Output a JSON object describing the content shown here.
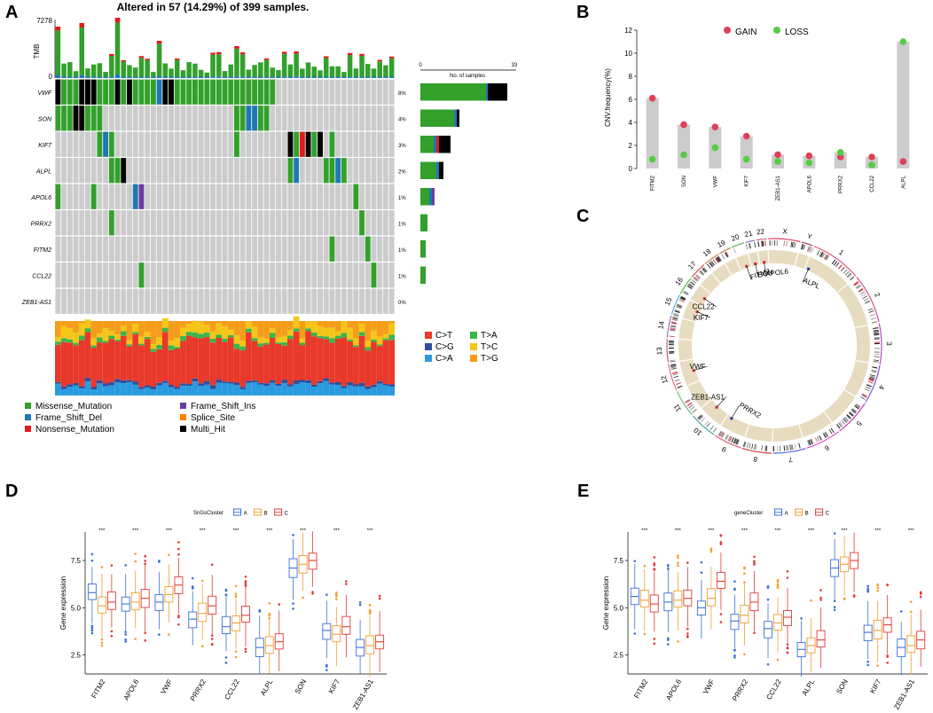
{
  "panels": {
    "a": "A",
    "b": "B",
    "c": "C",
    "d": "D",
    "e": "E"
  },
  "panelA": {
    "title": "Altered in 57 (14.29%) of 399 samples.",
    "tmb_label": "TMB",
    "tmb_max": "7278",
    "tmb_min": "0",
    "bar_axis_min": "0",
    "bar_axis_max": "33",
    "bar_axis_label": "No. of samples",
    "genes": [
      "VWF",
      "SON",
      "KIF7",
      "ALPL",
      "APOL6",
      "PRRX2",
      "FITM2",
      "CCL22",
      "ZEB1-AS1"
    ],
    "percents": [
      "8%",
      "4%",
      "3%",
      "2%",
      "1%",
      "1%",
      "1%",
      "1%",
      "0%"
    ],
    "legend_mutation": [
      {
        "label": "Missense_Mutation",
        "color": "#33a02c"
      },
      {
        "label": "Frame_Shift_Ins",
        "color": "#6a3d9a"
      },
      {
        "label": "Frame_Shift_Del",
        "color": "#1f78b4"
      },
      {
        "label": "Splice_Site",
        "color": "#ff7f00"
      },
      {
        "label": "Nonsense_Mutation",
        "color": "#e31a1c"
      },
      {
        "label": "Multi_Hit",
        "color": "#000000"
      }
    ],
    "legend_snv": [
      {
        "label": "C>T",
        "color": "#e8392a"
      },
      {
        "label": "T>A",
        "color": "#3cb54a"
      },
      {
        "label": "C>G",
        "color": "#2b4f9e"
      },
      {
        "label": "T>C",
        "color": "#f5c518"
      },
      {
        "label": "C>A",
        "color": "#2b9be0"
      },
      {
        "label": "T>G",
        "color": "#f59c1a"
      }
    ]
  },
  "chart_data": [
    {
      "type": "scatter",
      "panel": "B",
      "title": "",
      "ylabel": "CNV.frequency(%)",
      "ylim": [
        0,
        12
      ],
      "yticks": [
        "0",
        "2",
        "4",
        "6",
        "8",
        "10",
        "12"
      ],
      "categories": [
        "FITM2",
        "SON",
        "VWF",
        "KIF7",
        "ZEB1-AS1",
        "APOL6",
        "PRRX2",
        "CCL22",
        "ALPL"
      ],
      "series": [
        {
          "name": "GAIN",
          "color": "#e0405a",
          "values": [
            6.1,
            3.8,
            3.6,
            2.8,
            1.2,
            1.1,
            1.0,
            1.0,
            0.6
          ]
        },
        {
          "name": "LOSS",
          "color": "#55cc44",
          "values": [
            0.8,
            1.2,
            1.8,
            0.8,
            0.6,
            0.5,
            1.4,
            0.3,
            11.0
          ]
        }
      ],
      "bar_values": [
        6.1,
        3.8,
        3.6,
        2.8,
        1.2,
        1.1,
        1.4,
        1.0,
        11.0
      ]
    },
    {
      "type": "box",
      "panel": "D",
      "legend_title": "SnGsCluster",
      "ylabel": "Gene expression",
      "yticks": [
        "2.5",
        "5.0",
        "7.5"
      ],
      "ylim": [
        1.5,
        9.0
      ],
      "categories": [
        "FITM2",
        "APOL6",
        "VWF",
        "PRRX2",
        "CCL22",
        "ALPL",
        "SON",
        "KIF7",
        "ZEB1-AS1"
      ],
      "significance": [
        "***",
        "***",
        "***",
        "***",
        "***",
        "***",
        "***",
        "***",
        "***"
      ],
      "groups": [
        {
          "name": "A",
          "color": "#3a6fd9",
          "medians": [
            5.8,
            5.2,
            5.3,
            4.4,
            4.0,
            2.9,
            7.1,
            3.8,
            2.9
          ]
        },
        {
          "name": "B",
          "color": "#f0a030",
          "medians": [
            5.1,
            5.3,
            5.7,
            4.7,
            4.2,
            3.0,
            7.3,
            3.6,
            3.0
          ]
        },
        {
          "name": "C",
          "color": "#e23b3b",
          "medians": [
            5.3,
            5.5,
            6.2,
            5.1,
            4.6,
            3.2,
            7.5,
            4.0,
            3.2
          ]
        }
      ]
    },
    {
      "type": "box",
      "panel": "E",
      "legend_title": "geneCluster",
      "ylabel": "Gene expression",
      "yticks": [
        "2.5",
        "5.0",
        "7.5"
      ],
      "ylim": [
        1.5,
        9.0
      ],
      "categories": [
        "FITM2",
        "APOL6",
        "VWF",
        "PRRX2",
        "CCL22",
        "ALPL",
        "SON",
        "KIF7",
        "ZEB1-AS1"
      ],
      "significance": [
        "***",
        "***",
        "***",
        "***",
        "***",
        "***",
        "***",
        "***",
        "***"
      ],
      "groups": [
        {
          "name": "A",
          "color": "#3a6fd9",
          "medians": [
            5.6,
            5.3,
            5.0,
            4.3,
            3.9,
            2.8,
            7.1,
            3.7,
            2.9
          ]
        },
        {
          "name": "B",
          "color": "#f0a030",
          "medians": [
            5.4,
            5.4,
            5.5,
            4.6,
            4.2,
            3.0,
            7.3,
            3.8,
            3.0
          ]
        },
        {
          "name": "C",
          "color": "#e23b3b",
          "medians": [
            5.2,
            5.5,
            6.4,
            5.3,
            4.5,
            3.3,
            7.5,
            4.1,
            3.3
          ]
        }
      ]
    }
  ],
  "panelC": {
    "chromosomes": [
      "1",
      "2",
      "3",
      "4",
      "5",
      "6",
      "7",
      "8",
      "9",
      "10",
      "11",
      "12",
      "13",
      "14",
      "15",
      "16",
      "17",
      "18",
      "19",
      "20",
      "21",
      "22",
      "X",
      "Y"
    ],
    "gene_labels": [
      "ALPL",
      "APOL6",
      "SON",
      "FITM2",
      "CCL22",
      "KIF7",
      "VWF",
      "ZEB1-AS1",
      "PRRX2"
    ]
  }
}
